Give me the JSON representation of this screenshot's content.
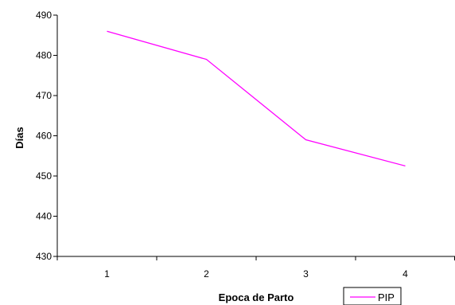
{
  "chart_data": {
    "type": "line",
    "title": "",
    "xlabel": "Epoca de Parto",
    "ylabel": "Días",
    "categories": [
      "1",
      "2",
      "3",
      "4"
    ],
    "series": [
      {
        "name": "PIP",
        "values": [
          486,
          479,
          459,
          452.5
        ],
        "color": "#ff00ff"
      }
    ],
    "ylim": [
      430,
      490
    ],
    "yticks": [
      430,
      440,
      450,
      460,
      470,
      480,
      490
    ],
    "grid": false,
    "legend": "bottom-right",
    "axis_color": "#000000"
  }
}
